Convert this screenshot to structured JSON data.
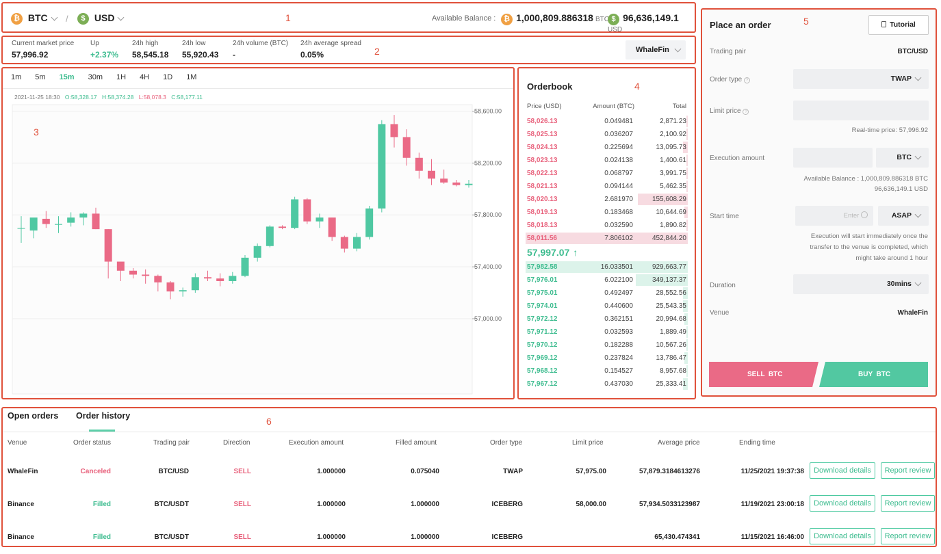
{
  "header": {
    "base_currency": "BTC",
    "quote_currency": "USD",
    "separator": "/",
    "available_label": "Available Balance :",
    "btc_balance": "1,000,809.886318",
    "btc_unit": "BTC",
    "usd_balance": "96,636,149.1",
    "usd_unit": "USD",
    "btc_icon": "bitcoin-icon",
    "usd_icon": "dollar-icon"
  },
  "stats": [
    {
      "label": "Current market price",
      "value": "57,996.92",
      "color": "#222222"
    },
    {
      "label": "Up",
      "value": "+2.37%",
      "color": "#3dbc8f"
    },
    {
      "label": "24h high",
      "value": "58,545.18",
      "color": "#222222"
    },
    {
      "label": "24h low",
      "value": "55,920.43",
      "color": "#222222"
    },
    {
      "label": "24h volume (BTC)",
      "value": "-",
      "color": "#222222"
    },
    {
      "label": "24h average spread",
      "value": "0.05%",
      "color": "#222222"
    }
  ],
  "venue_select": "WhaleFin",
  "chart": {
    "intervals": [
      "1m",
      "5m",
      "15m",
      "30m",
      "1H",
      "4H",
      "1D",
      "1M"
    ],
    "active_interval": "15m",
    "ohlc_date": "2021-11-25 18:30",
    "ohlc_open": "O:58,328.17",
    "ohlc_high": "H:58,374.28",
    "ohlc_low": "L:58,078.3",
    "ohlc_close": "C:58,177.11"
  },
  "chart_data": {
    "type": "candlestick",
    "y_ticks": [
      "58,600.00",
      "58,200.00",
      "57,800.00",
      "57,400.00",
      "57,000.00"
    ],
    "y_tick_values": [
      58600,
      58200,
      57800,
      57400,
      57000
    ],
    "ylim": [
      56420,
      58650
    ],
    "grid": true,
    "candles": [
      {
        "o": 57700,
        "h": 57790,
        "l": 57585,
        "c": 57700
      },
      {
        "o": 57680,
        "h": 57770,
        "l": 57620,
        "c": 57780
      },
      {
        "o": 57770,
        "h": 57830,
        "l": 57700,
        "c": 57730
      },
      {
        "o": 57730,
        "h": 57790,
        "l": 57660,
        "c": 57730
      },
      {
        "o": 57740,
        "h": 57820,
        "l": 57710,
        "c": 57780
      },
      {
        "o": 57780,
        "h": 57820,
        "l": 57720,
        "c": 57810
      },
      {
        "o": 57810,
        "h": 57855,
        "l": 57690,
        "c": 57690
      },
      {
        "o": 57690,
        "h": 57690,
        "l": 57310,
        "c": 57440
      },
      {
        "o": 57440,
        "h": 57440,
        "l": 57290,
        "c": 57370
      },
      {
        "o": 57370,
        "h": 57390,
        "l": 57310,
        "c": 57340
      },
      {
        "o": 57340,
        "h": 57380,
        "l": 57270,
        "c": 57330
      },
      {
        "o": 57330,
        "h": 57340,
        "l": 57210,
        "c": 57280
      },
      {
        "o": 57280,
        "h": 57290,
        "l": 57150,
        "c": 57210
      },
      {
        "o": 57210,
        "h": 57240,
        "l": 57170,
        "c": 57220
      },
      {
        "o": 57220,
        "h": 57350,
        "l": 57200,
        "c": 57320
      },
      {
        "o": 57320,
        "h": 57370,
        "l": 57290,
        "c": 57310
      },
      {
        "o": 57310,
        "h": 57350,
        "l": 57250,
        "c": 57290
      },
      {
        "o": 57290,
        "h": 57360,
        "l": 57270,
        "c": 57330
      },
      {
        "o": 57330,
        "h": 57490,
        "l": 57320,
        "c": 57470
      },
      {
        "o": 57470,
        "h": 57580,
        "l": 57440,
        "c": 57560
      },
      {
        "o": 57560,
        "h": 57720,
        "l": 57550,
        "c": 57710
      },
      {
        "o": 57710,
        "h": 57720,
        "l": 57690,
        "c": 57700
      },
      {
        "o": 57700,
        "h": 57940,
        "l": 57690,
        "c": 57920
      },
      {
        "o": 57920,
        "h": 57930,
        "l": 57730,
        "c": 57750
      },
      {
        "o": 57750,
        "h": 57810,
        "l": 57700,
        "c": 57780
      },
      {
        "o": 57780,
        "h": 57780,
        "l": 57600,
        "c": 57630
      },
      {
        "o": 57630,
        "h": 57640,
        "l": 57510,
        "c": 57540
      },
      {
        "o": 57540,
        "h": 57660,
        "l": 57520,
        "c": 57630
      },
      {
        "o": 57630,
        "h": 57870,
        "l": 57610,
        "c": 57850
      },
      {
        "o": 57850,
        "h": 58530,
        "l": 57820,
        "c": 58500
      },
      {
        "o": 58500,
        "h": 58570,
        "l": 58320,
        "c": 58400
      },
      {
        "o": 58400,
        "h": 58460,
        "l": 58180,
        "c": 58240
      },
      {
        "o": 58240,
        "h": 58280,
        "l": 58080,
        "c": 58140
      },
      {
        "o": 58140,
        "h": 58230,
        "l": 58030,
        "c": 58080
      },
      {
        "o": 58080,
        "h": 58150,
        "l": 58040,
        "c": 58050
      },
      {
        "o": 58050,
        "h": 58070,
        "l": 58020,
        "c": 58030
      },
      {
        "o": 58030,
        "h": 58070,
        "l": 58010,
        "c": 58040
      }
    ],
    "colors": {
      "up": "#4fc8a2",
      "down": "#ea6a86"
    }
  },
  "orderbook": {
    "title": "Orderbook",
    "headers": [
      "Price (USD)",
      "Amount (BTC)",
      "Total"
    ],
    "asks": [
      {
        "price": "58,026.13",
        "amount": "0.049481",
        "total": "2,871.23",
        "depth": 0.01
      },
      {
        "price": "58,025.13",
        "amount": "0.036207",
        "total": "2,100.92",
        "depth": 0.01
      },
      {
        "price": "58,024.13",
        "amount": "0.225694",
        "total": "13,095.73",
        "depth": 0.03
      },
      {
        "price": "58,023.13",
        "amount": "0.024138",
        "total": "1,400.61",
        "depth": 0.01
      },
      {
        "price": "58,022.13",
        "amount": "0.068797",
        "total": "3,991.75",
        "depth": 0.01
      },
      {
        "price": "58,021.13",
        "amount": "0.094144",
        "total": "5,462.35",
        "depth": 0.01
      },
      {
        "price": "58,020.13",
        "amount": "2.681970",
        "total": "155,608.29",
        "depth": 0.31
      },
      {
        "price": "58,019.13",
        "amount": "0.183468",
        "total": "10,644.69",
        "depth": 0.02
      },
      {
        "price": "58,018.13",
        "amount": "0.032590",
        "total": "1,890.82",
        "depth": 0.01
      },
      {
        "price": "58,011.56",
        "amount": "7.806102",
        "total": "452,844.20",
        "depth": 1.0
      }
    ],
    "last_price": "57,997.07",
    "bids": [
      {
        "price": "57,982.58",
        "amount": "16.033501",
        "total": "929,663.77",
        "depth": 1.0
      },
      {
        "price": "57,976.01",
        "amount": "6.022100",
        "total": "349,137.37",
        "depth": 0.32
      },
      {
        "price": "57,975.01",
        "amount": "0.492497",
        "total": "28,552.56",
        "depth": 0.03
      },
      {
        "price": "57,974.01",
        "amount": "0.440600",
        "total": "25,543.35",
        "depth": 0.03
      },
      {
        "price": "57,972.12",
        "amount": "0.362151",
        "total": "20,994.68",
        "depth": 0.02
      },
      {
        "price": "57,971.12",
        "amount": "0.032593",
        "total": "1,889.49",
        "depth": 0.01
      },
      {
        "price": "57,970.12",
        "amount": "0.182288",
        "total": "10,567.26",
        "depth": 0.01
      },
      {
        "price": "57,969.12",
        "amount": "0.237824",
        "total": "13,786.47",
        "depth": 0.02
      },
      {
        "price": "57,968.12",
        "amount": "0.154527",
        "total": "8,957.68",
        "depth": 0.01
      },
      {
        "price": "57,967.12",
        "amount": "0.437030",
        "total": "25,333.41",
        "depth": 0.03
      }
    ]
  },
  "order_form": {
    "title": "Place an order",
    "tutorial": "Tutorial",
    "trading_pair_label": "Trading pair",
    "trading_pair_value": "BTC/USD",
    "order_type_label": "Order type",
    "order_type_value": "TWAP",
    "limit_price_label": "Limit price",
    "limit_price_value": "",
    "realtime_price": "Real-time price: 57,996.92",
    "exec_amount_label": "Execution amount",
    "exec_amount_value": "",
    "exec_unit": "BTC",
    "avail_line1": "Available Balance :  1,000,809.886318 BTC",
    "avail_line2": "96,636,149.1 USD",
    "start_time_label": "Start time",
    "start_time_placeholder": "Enter",
    "start_time_option": "ASAP",
    "start_note1": "Execution will start immediately once the",
    "start_note2": "transfer to the venue is completed, which",
    "start_note3": "might take around 1 hour",
    "duration_label": "Duration",
    "duration_value": "30mins",
    "venue_label": "Venue",
    "venue_value": "WhaleFin",
    "sell_button": "SELL  BTC",
    "buy_button": "BUY  BTC"
  },
  "history": {
    "tabs": [
      "Open orders",
      "Order history"
    ],
    "active_tab": "Order history",
    "headers": [
      "Venue",
      "Order status",
      "Trading pair",
      "Direction",
      "Execution amount",
      "Filled amount",
      "Order type",
      "Limit price",
      "Average price",
      "Ending time"
    ],
    "rows": [
      {
        "venue": "WhaleFin",
        "status": "Canceled",
        "pair": "BTC/USD",
        "direction": "SELL",
        "exec": "1.000000",
        "filled": "0.075040",
        "type": "TWAP",
        "limit": "57,975.00",
        "avg": "57,879.3184613276",
        "end": "11/25/2021 19:37:38"
      },
      {
        "venue": "Binance",
        "status": "Filled",
        "pair": "BTC/USDT",
        "direction": "SELL",
        "exec": "1.000000",
        "filled": "1.000000",
        "type": "ICEBERG",
        "limit": "58,000.00",
        "avg": "57,934.5033123987",
        "end": "11/19/2021 23:00:18"
      },
      {
        "venue": "Binance",
        "status": "Filled",
        "pair": "BTC/USDT",
        "direction": "SELL",
        "exec": "1.000000",
        "filled": "1.000000",
        "type": "ICEBERG",
        "limit": "",
        "avg": "65,430.474341",
        "end": "11/15/2021 16:46:00"
      }
    ],
    "download_label": "Download details",
    "review_label": "Report review"
  },
  "region_labels": [
    "1",
    "2",
    "3",
    "4",
    "5",
    "6"
  ]
}
